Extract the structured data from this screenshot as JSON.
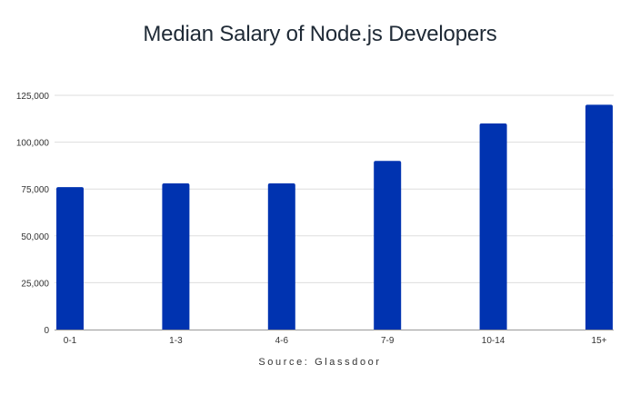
{
  "chart_data": {
    "type": "bar",
    "title": "Median Salary of Node.js Developers",
    "categories": [
      "0-1",
      "1-3",
      "4-6",
      "7-9",
      "10-14",
      "15+"
    ],
    "values": [
      76000,
      78000,
      78000,
      90000,
      110000,
      120000
    ],
    "y_ticks": [
      "0",
      "25,000",
      "50,000",
      "75,000",
      "100,000",
      "125,000"
    ],
    "xlabel": "",
    "ylabel": "",
    "ylim": [
      0,
      125000
    ],
    "grid": true,
    "legend": "none",
    "source": "Source: Glassdoor"
  },
  "colors": {
    "bar": "#0033b0",
    "grid": "#dddddd",
    "axis": "#999999",
    "tick_text": "#333333",
    "title": "#1f2a36"
  }
}
